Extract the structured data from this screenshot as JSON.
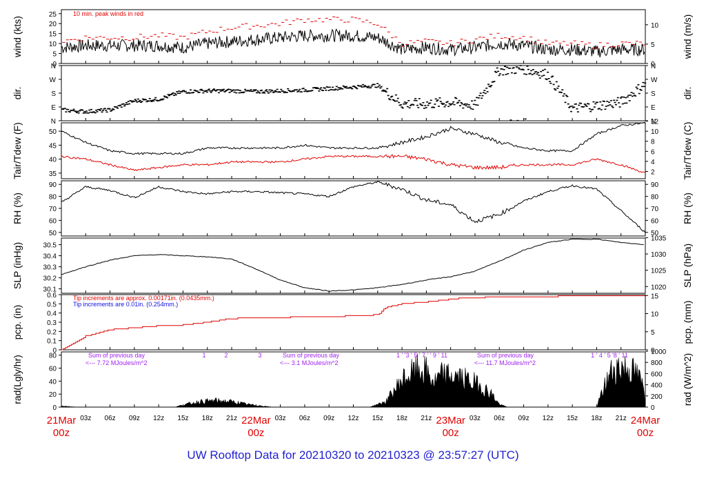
{
  "footer_title": "UW Rooftop Data for 20210320  to  20210323 @ 23:57:27  (UTC)",
  "colors": {
    "main": "#000000",
    "peak": "#e00000",
    "dew": "#e00000",
    "blue_note": "#1010e0",
    "purple": "#a020f0",
    "date_label": "#e00000",
    "footer": "#1f1fd0"
  },
  "x_axis": {
    "hour_ticks": [
      "03z",
      "06z",
      "09z",
      "12z",
      "15z",
      "18z",
      "21z",
      "03z",
      "06z",
      "09z",
      "12z",
      "15z",
      "18z",
      "21z",
      "03z",
      "06z",
      "09z",
      "12z",
      "15z",
      "18z",
      "21z"
    ],
    "day_labels": [
      {
        "date": "21Mar",
        "hour": "00z"
      },
      {
        "date": "22Mar",
        "hour": "00z"
      },
      {
        "date": "23Mar",
        "hour": "00z"
      },
      {
        "date": "24Mar",
        "hour": "00z"
      }
    ]
  },
  "panels": {
    "wind": {
      "ylabel_left": "wind (kts)",
      "ylabel_right": "wind (m/s)",
      "left_ticks": [
        "0",
        "5",
        "10",
        "15",
        "20",
        "25"
      ],
      "right_ticks": [
        "0",
        "5",
        "10"
      ],
      "note": "10 min. peak winds in red"
    },
    "dir": {
      "ylabel_left": "dir.",
      "ylabel_right": "dir.",
      "ticks": [
        "N",
        "E",
        "S",
        "W",
        "N"
      ]
    },
    "temp": {
      "ylabel_left": "Tair/Tdew (F)",
      "ylabel_right": "Tair/Tdew (C)",
      "left_ticks": [
        "35",
        "40",
        "45",
        "50"
      ],
      "right_ticks": [
        "2",
        "4",
        "6",
        "8",
        "10",
        "12"
      ]
    },
    "rh": {
      "ylabel_left": "RH (%)",
      "ylabel_right": "RH (%)",
      "ticks": [
        "50",
        "60",
        "70",
        "80",
        "90"
      ]
    },
    "slp": {
      "ylabel_left": "SLP (inHg)",
      "ylabel_right": "SLP (hPa)",
      "left_ticks": [
        "30.1",
        "30.2",
        "30.3",
        "30.4",
        "30.5"
      ],
      "right_ticks": [
        "1020",
        "1025",
        "1030",
        "1035"
      ]
    },
    "pcp": {
      "ylabel_left": "pcp. (in)",
      "ylabel_right": "pcp. (mm)",
      "left_ticks": [
        "0",
        "0.1",
        "0.2",
        "0.3",
        "0.4",
        "0.5",
        "0.6"
      ],
      "right_ticks": [
        "0",
        "5",
        "10",
        "15"
      ],
      "note_red": "Tip increments are approx. 0.00171in. (0.0435mm.)",
      "note_blue": "Tip increments are 0.01in. (0.254mm.)"
    },
    "rad": {
      "ylabel_left": "rad(Lgly/hr)",
      "ylabel_right": "rad (W/m^2)",
      "left_ticks": [
        "0",
        "20",
        "40",
        "60",
        "80"
      ],
      "right_ticks": [
        "0",
        "200",
        "400",
        "600",
        "800",
        "1000"
      ],
      "daily_sums": [
        {
          "line1": "Sum of previous day",
          "line2": "<--- 7.72 MJoules/m^2"
        },
        {
          "line1": "Sum of previous day",
          "line2": "<--- 3.1 MJoules/m^2"
        },
        {
          "line1": "Sum of previous day",
          "line2": "<--- 11.7 MJoules/m^2"
        }
      ],
      "day1_markers": [
        "1",
        "2",
        "3"
      ],
      "day3_markers": "1 ' '3 ' 5 ' 7 '  ' 9 ' 11",
      "day4_markers": "1 '  4  ' 5 '8 ' 11"
    }
  },
  "chart_data": [
    {
      "type": "line",
      "panel": "wind",
      "x": [
        0,
        3,
        6,
        9,
        12,
        15,
        18,
        21,
        24,
        27,
        30,
        33,
        36,
        39,
        42,
        45,
        48,
        51,
        54,
        57,
        60,
        63,
        66,
        69,
        72
      ],
      "series": [
        {
          "values": [
            8,
            9,
            9,
            9,
            9,
            8,
            10,
            11,
            12,
            13,
            14,
            14,
            14,
            13,
            7,
            8,
            7,
            8,
            10,
            9,
            7,
            7,
            6,
            7,
            7
          ]
        },
        {
          "name": "10 min. peak winds in red",
          "values": [
            11,
            13,
            13,
            13,
            14,
            13,
            16,
            18,
            19,
            20,
            22,
            22,
            22,
            20,
            10,
            11,
            10,
            12,
            14,
            13,
            10,
            10,
            9,
            10,
            10
          ]
        }
      ],
      "ylim": [
        0,
        27
      ]
    },
    {
      "type": "scatter",
      "panel": "dir",
      "x": [
        0,
        3,
        6,
        9,
        12,
        15,
        18,
        21,
        24,
        27,
        30,
        33,
        36,
        39,
        42,
        45,
        48,
        51,
        54,
        57,
        60,
        63,
        66,
        69,
        72
      ],
      "values": [
        70,
        60,
        70,
        130,
        140,
        190,
        195,
        195,
        190,
        195,
        200,
        210,
        220,
        230,
        110,
        110,
        120,
        100,
        330,
        340,
        300,
        80,
        100,
        120,
        240
      ],
      "ylim": [
        0,
        360
      ]
    },
    {
      "type": "line",
      "panel": "temp",
      "x": [
        0,
        3,
        6,
        9,
        12,
        15,
        18,
        21,
        24,
        27,
        30,
        33,
        36,
        39,
        42,
        45,
        48,
        51,
        54,
        57,
        60,
        63,
        66,
        69,
        72
      ],
      "series": [
        {
          "values": [
            50,
            46,
            43,
            42,
            42,
            42,
            44,
            44,
            44,
            44,
            45,
            44,
            44,
            44,
            46,
            48,
            51,
            49,
            46,
            44,
            43,
            43,
            49,
            52,
            53
          ]
        },
        {
          "values": [
            41,
            40,
            38,
            36,
            37,
            38,
            38,
            39,
            39,
            39,
            40,
            41,
            41,
            41,
            41,
            40,
            38,
            37,
            37,
            38,
            38,
            38,
            40,
            38,
            35
          ]
        }
      ],
      "ylim": [
        33,
        53
      ]
    },
    {
      "type": "line",
      "panel": "rh",
      "x": [
        0,
        3,
        6,
        9,
        12,
        15,
        18,
        21,
        24,
        27,
        30,
        33,
        36,
        39,
        42,
        45,
        48,
        51,
        54,
        57,
        60,
        63,
        66,
        69,
        72
      ],
      "values": [
        75,
        88,
        85,
        79,
        88,
        84,
        82,
        84,
        84,
        83,
        82,
        80,
        88,
        92,
        86,
        77,
        73,
        59,
        65,
        76,
        84,
        89,
        86,
        68,
        50
      ],
      "ylim": [
        47,
        93
      ]
    },
    {
      "type": "line",
      "panel": "slp",
      "x": [
        0,
        3,
        6,
        9,
        12,
        15,
        18,
        21,
        24,
        27,
        30,
        33,
        36,
        39,
        42,
        45,
        48,
        51,
        54,
        57,
        60,
        63,
        66,
        69,
        72
      ],
      "values": [
        30.23,
        30.3,
        30.36,
        30.4,
        30.41,
        30.4,
        30.39,
        30.37,
        30.28,
        30.18,
        30.11,
        30.08,
        30.09,
        30.11,
        30.14,
        30.18,
        30.21,
        30.26,
        30.35,
        30.45,
        30.52,
        30.55,
        30.55,
        30.52,
        30.5
      ],
      "ylim": [
        30.06,
        30.56
      ]
    },
    {
      "type": "line",
      "panel": "pcp",
      "x": [
        0,
        1,
        3,
        6,
        9,
        12,
        15,
        18,
        21,
        24,
        27,
        30,
        33,
        36,
        39,
        40,
        42,
        45,
        48,
        50,
        52,
        54,
        57,
        60,
        66,
        72
      ],
      "values": [
        0,
        0.05,
        0.15,
        0.22,
        0.24,
        0.26,
        0.27,
        0.3,
        0.34,
        0.35,
        0.35,
        0.36,
        0.36,
        0.37,
        0.38,
        0.46,
        0.5,
        0.52,
        0.55,
        0.57,
        0.57,
        0.58,
        0.58,
        0.58,
        0.59,
        0.59
      ],
      "ylim": [
        0,
        0.6
      ]
    },
    {
      "type": "area",
      "panel": "rad",
      "x": [
        0,
        1,
        2,
        14,
        15,
        17,
        19,
        21,
        23,
        26,
        38,
        40,
        42,
        44,
        45,
        46,
        47,
        49,
        51,
        53,
        54,
        55,
        66,
        67,
        68,
        69,
        70,
        71,
        72
      ],
      "values": [
        2,
        1,
        0,
        0,
        4,
        10,
        12,
        10,
        5,
        0,
        0,
        10,
        50,
        70,
        65,
        45,
        60,
        55,
        45,
        25,
        5,
        0,
        0,
        40,
        70,
        75,
        70,
        60,
        30
      ],
      "ylim": [
        0,
        85
      ]
    }
  ]
}
